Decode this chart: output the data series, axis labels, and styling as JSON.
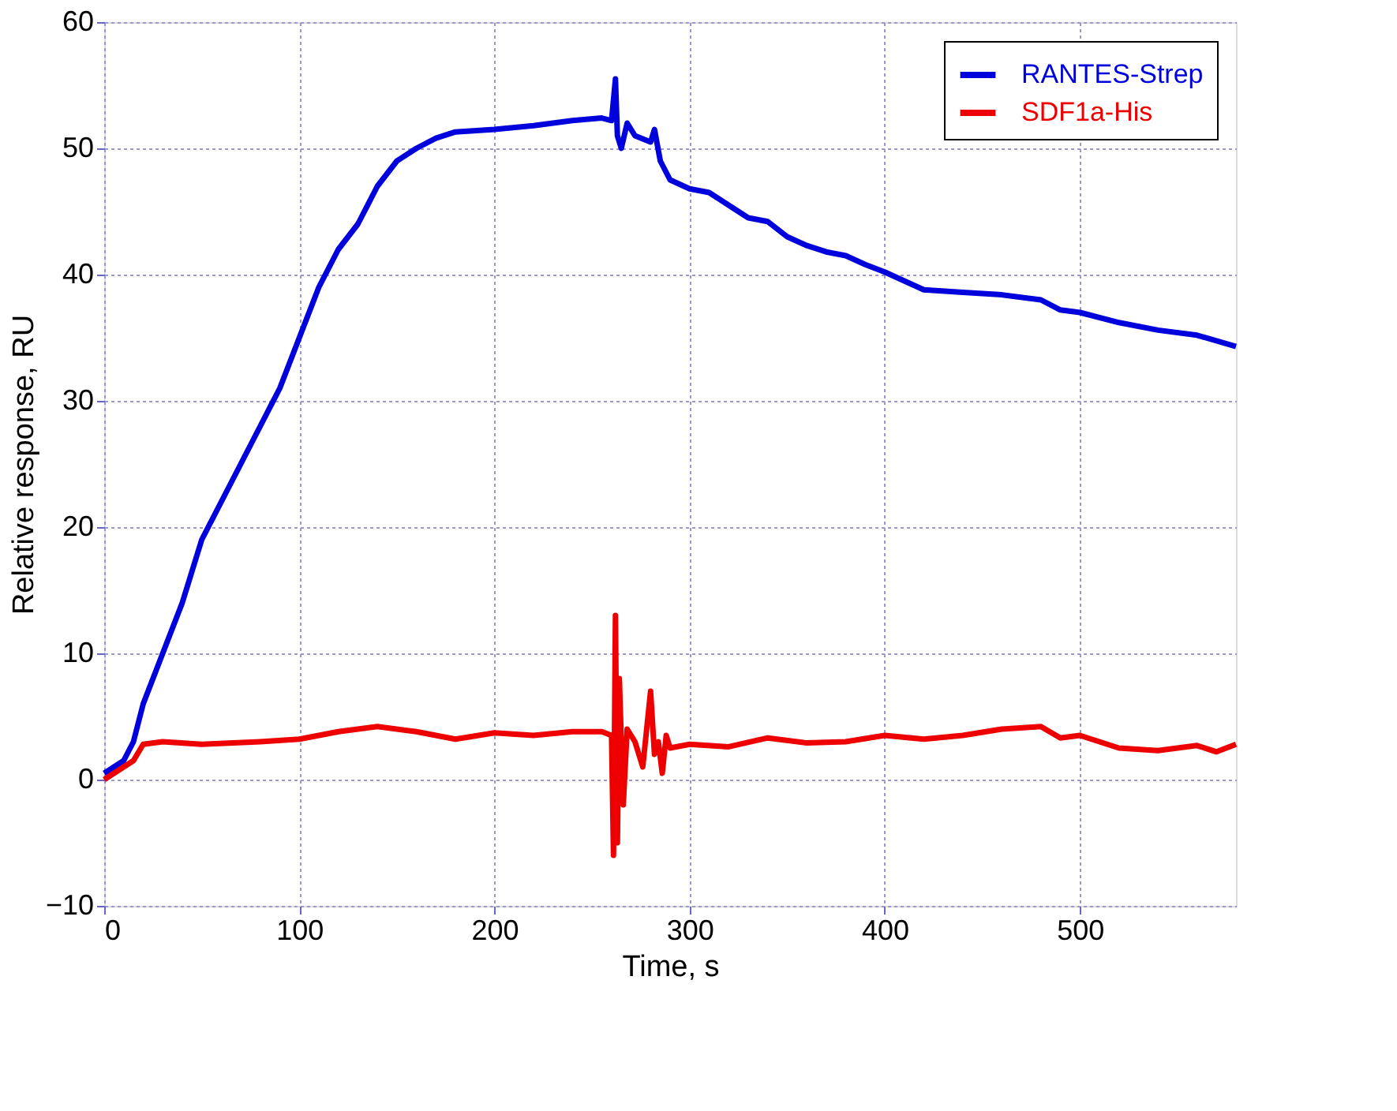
{
  "chart_data": {
    "type": "line",
    "xlabel": "Time, s",
    "ylabel": "Relative response, RU",
    "xlim": [
      0,
      580
    ],
    "xticks": [
      0,
      100,
      200,
      300,
      400,
      500
    ],
    "ylim": [
      -10,
      60
    ],
    "yticks": [
      -10,
      0,
      10,
      20,
      30,
      40,
      50,
      60
    ],
    "grid": true,
    "legend": "top right",
    "marker": "none",
    "line_style": "solid",
    "series": [
      {
        "name": "RANTES-Strep",
        "color": "#0000dd",
        "x": [
          0,
          10,
          15,
          20,
          30,
          40,
          50,
          60,
          70,
          80,
          90,
          100,
          110,
          120,
          130,
          140,
          150,
          160,
          170,
          180,
          200,
          220,
          240,
          255,
          260,
          262,
          263,
          265,
          268,
          272,
          280,
          282,
          285,
          290,
          300,
          310,
          320,
          330,
          340,
          350,
          360,
          370,
          380,
          390,
          400,
          410,
          420,
          440,
          460,
          480,
          490,
          500,
          520,
          540,
          560,
          580
        ],
        "values": [
          0.5,
          1.5,
          3,
          6,
          10,
          14,
          19,
          22,
          25,
          28,
          31,
          35,
          39,
          42,
          44,
          47,
          49,
          50,
          50.8,
          51.3,
          51.5,
          51.8,
          52.2,
          52.4,
          52.2,
          55.5,
          51,
          50,
          52,
          51,
          50.5,
          51.5,
          49,
          47.5,
          46.8,
          46.5,
          45.5,
          44.5,
          44.2,
          43,
          42.3,
          41.8,
          41.5,
          40.8,
          40.2,
          39.5,
          38.8,
          38.6,
          38.4,
          38,
          37.2,
          37,
          36.2,
          35.6,
          35.2,
          34.3
        ]
      },
      {
        "name": "SDF1a-His",
        "color": "#ee0000",
        "x": [
          0,
          10,
          15,
          20,
          30,
          50,
          80,
          100,
          120,
          140,
          160,
          180,
          200,
          220,
          240,
          255,
          260,
          261,
          262,
          263,
          264,
          266,
          268,
          272,
          276,
          280,
          282,
          284,
          286,
          288,
          290,
          300,
          320,
          340,
          360,
          380,
          400,
          420,
          440,
          460,
          480,
          490,
          500,
          520,
          540,
          560,
          570,
          580
        ],
        "values": [
          0,
          1,
          1.5,
          2.8,
          3,
          2.8,
          3,
          3.2,
          3.8,
          4.2,
          3.8,
          3.2,
          3.7,
          3.5,
          3.8,
          3.8,
          3.5,
          -6,
          13,
          -5,
          8,
          -2,
          4,
          3,
          1,
          7,
          2,
          3,
          0.5,
          3.5,
          2.5,
          2.8,
          2.6,
          3.3,
          2.9,
          3,
          3.5,
          3.2,
          3.5,
          4,
          4.2,
          3.3,
          3.5,
          2.5,
          2.3,
          2.7,
          2.2,
          2.8
        ]
      }
    ]
  }
}
